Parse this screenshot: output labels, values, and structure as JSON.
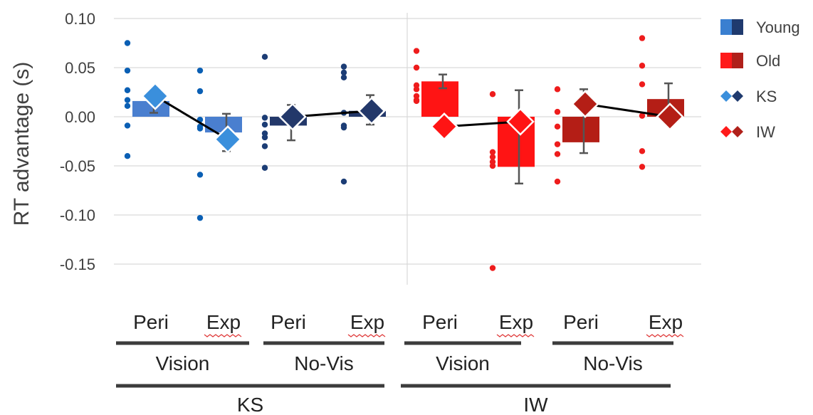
{
  "chart_data": {
    "type": "bar",
    "ylabel": "RT advantage (s)",
    "ylim": [
      -0.17,
      0.1
    ],
    "yticks": [
      "0.10",
      "0.05",
      "0.00",
      "-0.05",
      "-0.10",
      "-0.15"
    ],
    "yticks_values": [
      0.1,
      0.05,
      0.0,
      -0.05,
      -0.1,
      -0.15
    ],
    "grid": true,
    "legend_position": "right",
    "legend": [
      {
        "label": "Young",
        "marker": "square",
        "colors": [
          "#3a7fd0",
          "#1f3a6e"
        ]
      },
      {
        "label": "Old",
        "marker": "square",
        "colors": [
          "#ff1a1a",
          "#b0201a"
        ]
      },
      {
        "label": "KS",
        "marker": "diamond",
        "colors": [
          "#3a8fdc",
          "#1f3a6e"
        ]
      },
      {
        "label": "IW",
        "marker": "diamond",
        "colors": [
          "#ff1a1a",
          "#b0201a"
        ]
      }
    ],
    "category_labels": [
      "Peri",
      "Exp",
      "Peri",
      "Exp",
      "Peri",
      "Exp",
      "Peri",
      "Exp"
    ],
    "condition_labels": [
      "Vision",
      "No-Vis",
      "Vision",
      "No-Vis"
    ],
    "subject_labels": [
      "KS",
      "IW"
    ],
    "colors": {
      "ks_vision": "#4a7fcf",
      "ks_vision_diamond": "#3a8fdc",
      "ks_novis": "#23386a",
      "iw_vision": "#ff1414",
      "iw_novis": "#b41e16",
      "dots_ks": "#0a5fb4",
      "dots_ks_dark": "#1c3d75",
      "dots_iw": "#ee1c1c",
      "line": "#000000",
      "error": "#555555"
    },
    "bars": [
      {
        "category": "Peri",
        "value": 0.016,
        "err_low": 0.004,
        "err_high": 0.016,
        "style": "ks_vision"
      },
      {
        "category": "Exp",
        "value": -0.016,
        "err_low": -0.035,
        "err_high": 0.003,
        "style": "ks_vision"
      },
      {
        "category": "Peri",
        "value": -0.009,
        "err_low": -0.024,
        "err_high": 0.012,
        "style": "ks_novis"
      },
      {
        "category": "Exp",
        "value": 0.006,
        "err_low": -0.008,
        "err_high": 0.022,
        "style": "ks_novis"
      },
      {
        "category": "Peri",
        "value": 0.036,
        "err_low": 0.029,
        "err_high": 0.043,
        "style": "iw_vision"
      },
      {
        "category": "Exp",
        "value": -0.051,
        "err_low": -0.068,
        "err_high": 0.027,
        "style": "iw_vision"
      },
      {
        "category": "Peri",
        "value": -0.026,
        "err_low": -0.037,
        "err_high": 0.028,
        "style": "iw_novis"
      },
      {
        "category": "Exp",
        "value": 0.018,
        "err_low": 0.002,
        "err_high": 0.034,
        "style": "iw_novis"
      }
    ],
    "diamonds": [
      {
        "value": 0.021,
        "style": "ks_vision_diamond"
      },
      {
        "value": -0.023,
        "style": "ks_vision_diamond"
      },
      {
        "value": 0.0,
        "style": "ks_novis"
      },
      {
        "value": 0.006,
        "style": "ks_novis"
      },
      {
        "value": -0.01,
        "style": "iw_vision"
      },
      {
        "value": -0.005,
        "style": "iw_vision"
      },
      {
        "value": 0.013,
        "style": "iw_novis"
      },
      {
        "value": 0.0,
        "style": "iw_novis"
      }
    ],
    "points": [
      {
        "values": [
          0.075,
          0.047,
          0.027,
          0.017,
          0.011,
          -0.009,
          -0.04
        ],
        "style": "dots_ks"
      },
      {
        "values": [
          0.047,
          0.026,
          -0.003,
          -0.01,
          -0.012,
          -0.059,
          -0.103
        ],
        "style": "dots_ks"
      },
      {
        "values": [
          0.061,
          -0.001,
          -0.008,
          -0.017,
          -0.021,
          -0.03,
          -0.052
        ],
        "style": "dots_ks_dark"
      },
      {
        "values": [
          0.051,
          0.045,
          0.04,
          0.004,
          -0.009,
          -0.011,
          -0.066
        ],
        "style": "dots_ks_dark"
      },
      {
        "values": [
          0.067,
          0.05,
          0.032,
          0.028,
          0.021,
          0.017,
          0.016
        ],
        "style": "dots_iw"
      },
      {
        "values": [
          0.023,
          -0.036,
          -0.041,
          -0.046,
          -0.05,
          -0.154
        ],
        "style": "dots_iw"
      },
      {
        "values": [
          0.028,
          0.005,
          -0.01,
          -0.028,
          -0.038,
          -0.066
        ],
        "style": "dots_iw"
      },
      {
        "values": [
          0.08,
          0.052,
          0.033,
          0.001,
          -0.035,
          -0.051
        ],
        "style": "dots_iw"
      }
    ],
    "connectors": [
      [
        0,
        1
      ],
      [
        2,
        3
      ],
      [
        4,
        5
      ],
      [
        6,
        7
      ]
    ]
  }
}
